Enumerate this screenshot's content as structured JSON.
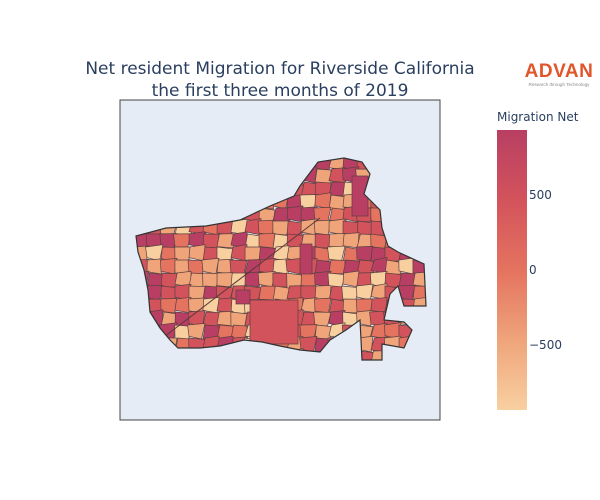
{
  "title": {
    "line1": "Net resident Migration for Riverside California",
    "line2": "the first three months of 2019"
  },
  "logo": {
    "word": "ADVAN",
    "tagline": "Research through Technology"
  },
  "colorbar": {
    "title": "Migration Net",
    "ticks": [
      {
        "label": "500",
        "value": 500
      },
      {
        "label": "0",
        "value": 0
      },
      {
        "label": "−500",
        "value": -500
      }
    ],
    "range": [
      -930,
      930
    ],
    "colors": [
      "#f8d0a0",
      "#efa47a",
      "#e4735f",
      "#d3535c",
      "#b83f63"
    ]
  },
  "map": {
    "background": "#e5ecf6",
    "border_color": "#444444",
    "region": "Riverside, California"
  }
}
